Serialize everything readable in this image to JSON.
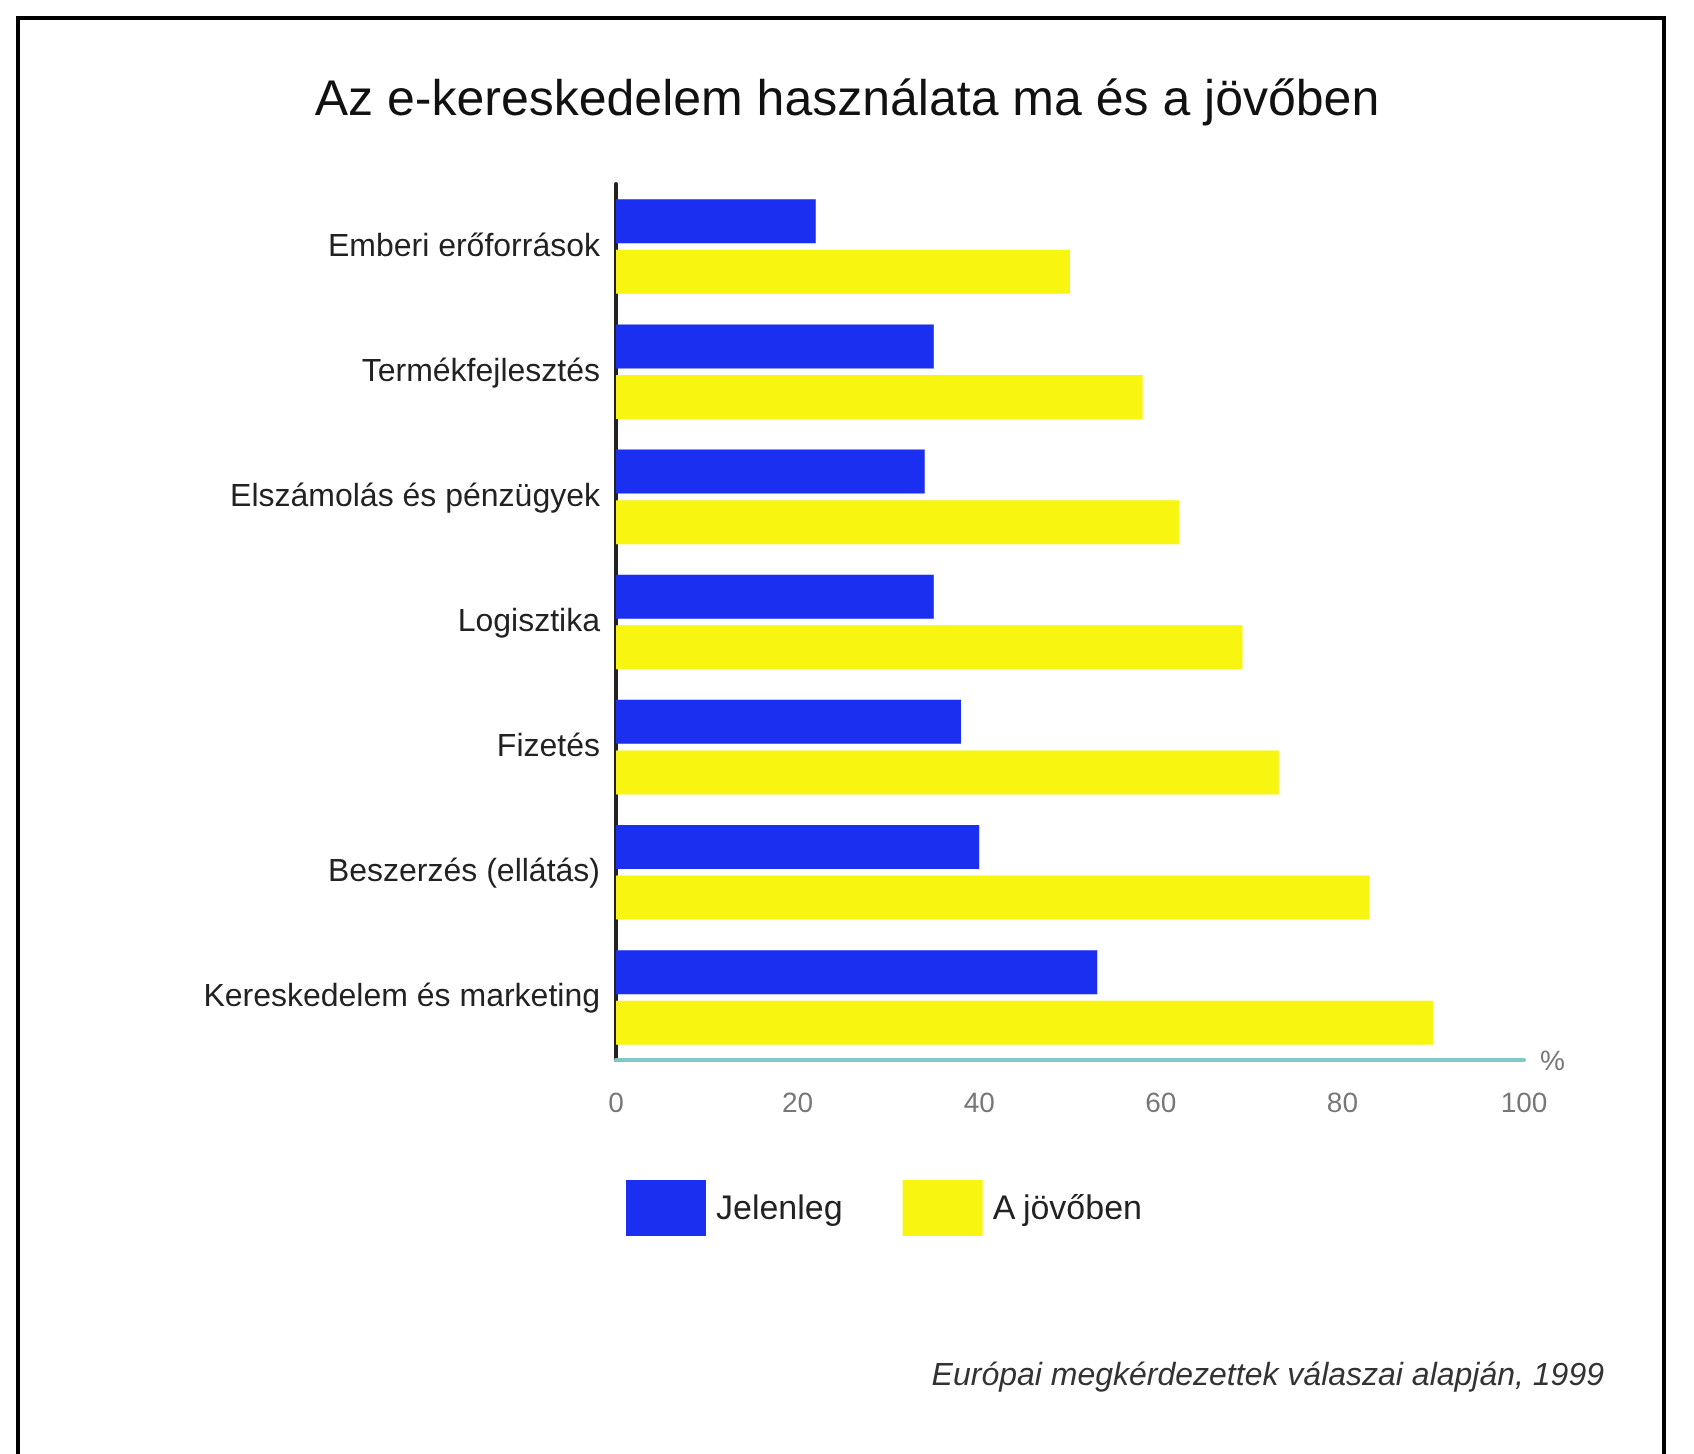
{
  "chart_data": {
    "type": "bar",
    "orientation": "horizontal",
    "title": "Az e-kereskedelem használata ma és a jövőben",
    "xlabel": "%",
    "categories": [
      "Emberi erőforrások",
      "Termékfejlesztés",
      "Elszámolás és pénzügyek",
      "Logisztika",
      "Fizetés",
      "Beszerzés (ellátás)",
      "Kereskedelem és marketing"
    ],
    "series": [
      {
        "name": "Jelenleg",
        "color": "#1a2ff0",
        "values": [
          22,
          35,
          34,
          35,
          38,
          40,
          53
        ]
      },
      {
        "name": "A jövőben",
        "color": "#f8f510",
        "values": [
          50,
          58,
          62,
          69,
          73,
          83,
          90
        ]
      }
    ],
    "xlim": [
      0,
      100
    ],
    "xticks": [
      0,
      20,
      40,
      60,
      80,
      100
    ],
    "grid": false,
    "legend": "bottom left",
    "annotations": [
      "Európai megkérdezettek válaszai alapján, 1999"
    ]
  }
}
